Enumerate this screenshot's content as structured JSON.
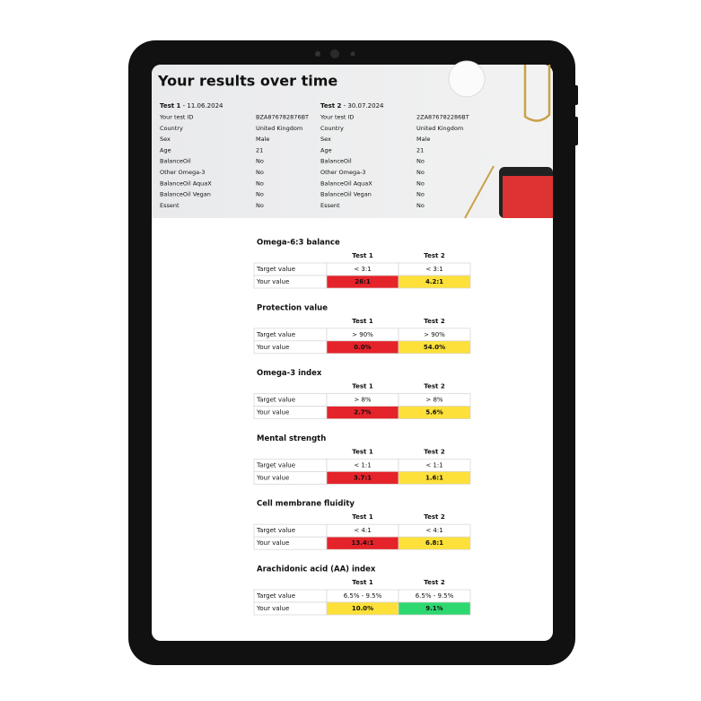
{
  "header": {
    "title": "Your results over time",
    "tests": [
      {
        "name": "Test 1",
        "date": "- 11.06.2024",
        "rows": [
          {
            "label": "Your test ID",
            "value": "BZA876782876BT"
          },
          {
            "label": "Country",
            "value": "United Kingdom"
          },
          {
            "label": "Sex",
            "value": "Male"
          },
          {
            "label": "Age",
            "value": "21"
          },
          {
            "label": "BalanceOil",
            "value": "No"
          },
          {
            "label": "Other Omega-3",
            "value": "No"
          },
          {
            "label": "BalanceOil AquaX",
            "value": "No"
          },
          {
            "label": "BalanceOil Vegan",
            "value": "No"
          },
          {
            "label": "Essent",
            "value": "No"
          }
        ]
      },
      {
        "name": "Test 2",
        "date": "- 30.07.2024",
        "rows": [
          {
            "label": "Your test ID",
            "value": "2ZA876782286BT"
          },
          {
            "label": "Country",
            "value": "United Kingdom"
          },
          {
            "label": "Sex",
            "value": "Male"
          },
          {
            "label": "Age",
            "value": "21"
          },
          {
            "label": "BalanceOil",
            "value": "No"
          },
          {
            "label": "Other Omega-3",
            "value": "No"
          },
          {
            "label": "BalanceOil AquaX",
            "value": "No"
          },
          {
            "label": "BalanceOil Vegan",
            "value": "No"
          },
          {
            "label": "Essent",
            "value": "No"
          }
        ]
      }
    ]
  },
  "sections": [
    {
      "title": "Omega-6:3 balance",
      "columns": [
        "Test 1",
        "Test 2"
      ],
      "target_label": "Target value",
      "target": [
        "< 3:1",
        "< 3:1"
      ],
      "result_label": "Your value",
      "results": [
        "26:1",
        "4.2:1"
      ],
      "colors": [
        "#e5232a",
        "#fde03a"
      ]
    },
    {
      "title": "Protection value",
      "columns": [
        "Test 1",
        "Test 2"
      ],
      "target_label": "Target value",
      "target": [
        "> 90%",
        "> 90%"
      ],
      "result_label": "Your value",
      "results": [
        "0.0%",
        "54.0%"
      ],
      "colors": [
        "#e5232a",
        "#fde03a"
      ]
    },
    {
      "title": "Omega-3 index",
      "columns": [
        "Test 1",
        "Test 2"
      ],
      "target_label": "Target value",
      "target": [
        "> 8%",
        "> 8%"
      ],
      "result_label": "Your value",
      "results": [
        "2.7%",
        "5.6%"
      ],
      "colors": [
        "#e5232a",
        "#fde03a"
      ]
    },
    {
      "title": "Mental strength",
      "columns": [
        "Test 1",
        "Test 2"
      ],
      "target_label": "Target value",
      "target": [
        "< 1:1",
        "< 1:1"
      ],
      "result_label": "Your value",
      "results": [
        "3.7:1",
        "1.6:1"
      ],
      "colors": [
        "#e5232a",
        "#fde03a"
      ]
    },
    {
      "title": "Cell membrane fluidity",
      "columns": [
        "Test 1",
        "Test 2"
      ],
      "target_label": "Target value",
      "target": [
        "< 4:1",
        "< 4:1"
      ],
      "result_label": "Your value",
      "results": [
        "13.4:1",
        "6.8:1"
      ],
      "colors": [
        "#e5232a",
        "#fde03a"
      ]
    },
    {
      "title": "Arachidonic acid (AA) index",
      "columns": [
        "Test 1",
        "Test 2"
      ],
      "target_label": "Target value",
      "target": [
        "6.5% - 9.5%",
        "6.5% - 9.5%"
      ],
      "result_label": "Your value",
      "results": [
        "10.0%",
        "9.1%"
      ],
      "colors": [
        "#fde03a",
        "#2ed870"
      ]
    }
  ]
}
